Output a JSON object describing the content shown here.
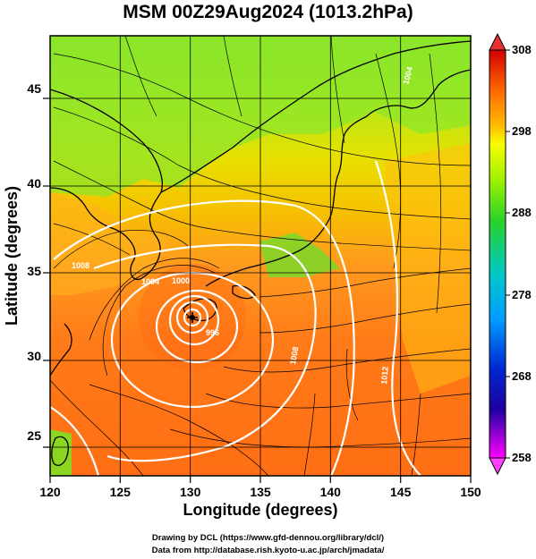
{
  "title": "MSM 00Z29Aug2024 (1013.2hPa)",
  "map": {
    "xlabel": "Longitude (degrees)",
    "ylabel": "Latitude  (degrees)",
    "xticks": [
      "120",
      "125",
      "130",
      "135",
      "140",
      "145",
      "150"
    ],
    "yticks": [
      "25",
      "30",
      "35",
      "40",
      "45"
    ],
    "contour_labels": [
      "1004",
      "1000",
      "996",
      "1008",
      "1012",
      "1008",
      "1004"
    ]
  },
  "colorbar": {
    "ticks": [
      "308",
      "298",
      "288",
      "278",
      "268",
      "258"
    ],
    "colors": [
      "#d20000",
      "#ff6a00",
      "#ffcc00",
      "#f2ff00",
      "#9cf000",
      "#28d22a",
      "#00c8c8",
      "#009cff",
      "#0028d2",
      "#1e00a0",
      "#a000c8",
      "#ff00ff"
    ]
  },
  "footer": {
    "line1": "Drawing by DCL (https://www.gfd-dennou.org/library/dcl/)",
    "line2": "Data from http://database.rish.kyoto-u.ac.jp/arch/jmadata/"
  }
}
